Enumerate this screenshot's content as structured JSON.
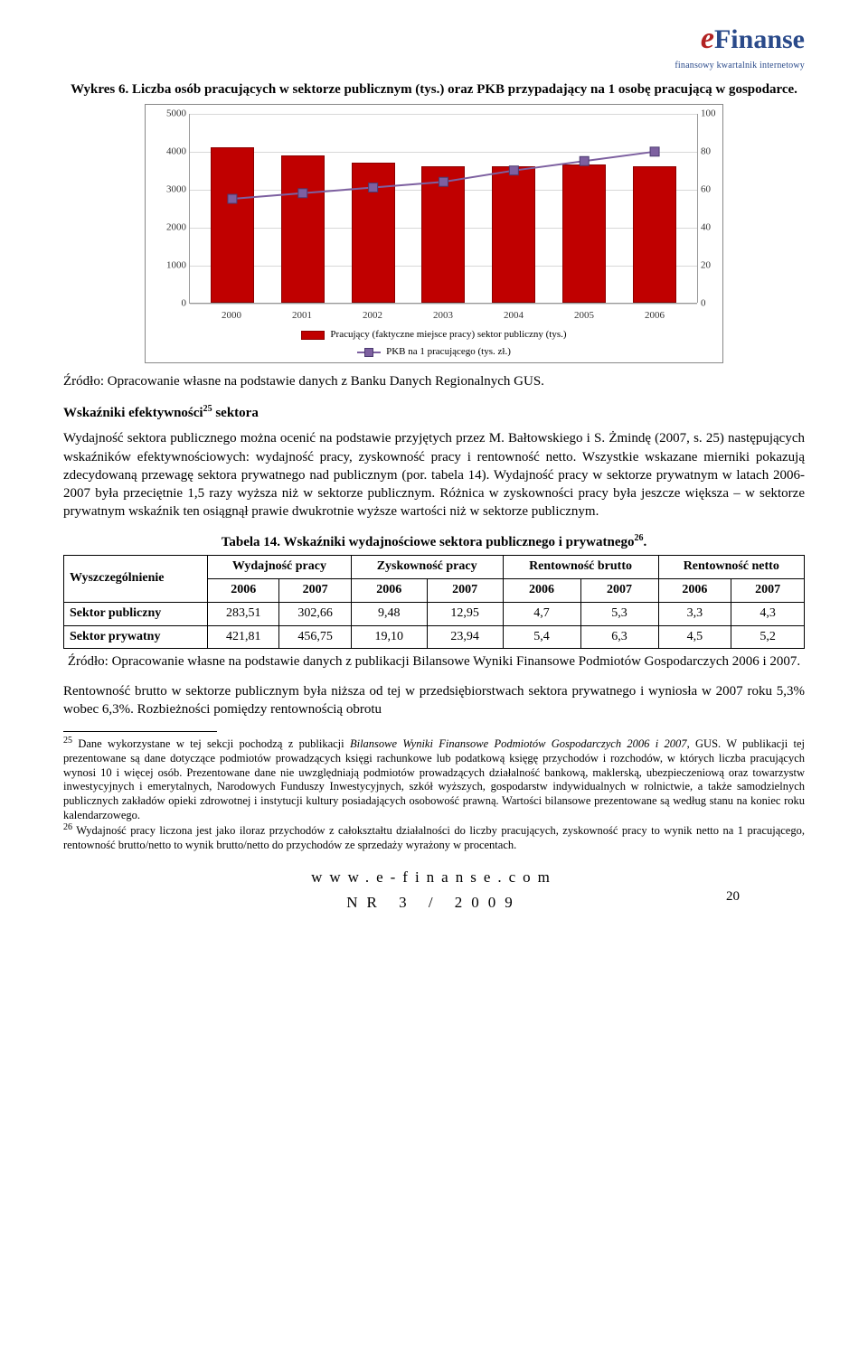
{
  "logo": {
    "brand_e": "e",
    "brand_rest": "Finanse",
    "tagline": "finansowy kwartalnik internetowy"
  },
  "figure": {
    "title": "Wykres 6. Liczba osób pracujących w sektorze publicznym (tys.) oraz PKB przypadający na 1 osobę pracującą w gospodarce.",
    "type": "bar+line",
    "categories": [
      "2000",
      "2001",
      "2002",
      "2003",
      "2004",
      "2005",
      "2006"
    ],
    "bar_values": [
      4100,
      3900,
      3700,
      3600,
      3600,
      3650,
      3600
    ],
    "line_values": [
      55,
      58,
      61,
      64,
      70,
      75,
      80
    ],
    "left_axis": {
      "min": 0,
      "max": 5000,
      "ticks": [
        0,
        1000,
        2000,
        3000,
        4000,
        5000
      ]
    },
    "right_axis": {
      "min": 0,
      "max": 100,
      "ticks": [
        0,
        20,
        40,
        60,
        80,
        100
      ]
    },
    "bar_color": "#c00000",
    "bar_border": "#8a0000",
    "line_color": "#7d60a0",
    "marker_border": "#4b3a70",
    "grid_color": "#d8d8d8",
    "legend": {
      "bar": "Pracujący (faktyczne miejsce pracy) sektor publiczny (tys.)",
      "line": "PKB na 1 pracującego (tys. zł.)"
    }
  },
  "source1": "Źródło: Opracowanie własne na podstawie danych z Banku Danych Regionalnych GUS.",
  "section": {
    "heading_html": "Wskaźniki efektywności<sup>25</sup> sektora",
    "heading": "Wskaźniki efektywności25 sektora"
  },
  "para1": "Wydajność sektora publicznego można ocenić na podstawie przyjętych przez M. Bałtowskiego i S. Żmindę (2007, s. 25) następujących wskaźników efektywnościowych: wydajność pracy, zyskowność pracy i rentowność netto. Wszystkie wskazane mierniki pokazują zdecydowaną przewagę sektora prywatnego nad publicznym (por. tabela 14). Wydajność pracy w sektorze prywatnym w latach 2006-2007 była przeciętnie 1,5 razy wyższa niż w sektorze publicznym. Różnica w zyskowności pracy była jeszcze większa – w sektorze prywatnym wskaźnik ten osiągnął prawie dwukrotnie wyższe wartości niż w sektorze publicznym.",
  "table": {
    "title": "Tabela 14. Wskaźniki wydajnościowe sektora publicznego i prywatnego",
    "title_sup": "26",
    "row_header": "Wyszczególnienie",
    "group_headers": [
      "Wydajność pracy",
      "Zyskowność pracy",
      "Rentowność brutto",
      "Rentowność netto"
    ],
    "year_headers": [
      "2006",
      "2007",
      "2006",
      "2007",
      "2006",
      "2007",
      "2006",
      "2007"
    ],
    "rows": [
      {
        "label": "Sektor publiczny",
        "vals": [
          "283,51",
          "302,66",
          "9,48",
          "12,95",
          "4,7",
          "5,3",
          "3,3",
          "4,3"
        ]
      },
      {
        "label": "Sektor prywatny",
        "vals": [
          "421,81",
          "456,75",
          "19,10",
          "23,94",
          "5,4",
          "6,3",
          "4,5",
          "5,2"
        ]
      }
    ],
    "source": "Źródło: Opracowanie własne na podstawie danych z publikacji Bilansowe Wyniki Finansowe Podmiotów Gospodarczych 2006 i 2007."
  },
  "para2": "Rentowność brutto w sektorze publicznym była niższa od tej w przedsiębiorstwach sektora prywatnego i wyniosła w 2007 roku 5,3% wobec 6,3%. Rozbieżności pomiędzy rentownością obrotu",
  "footnotes": {
    "fn25": "Dane wykorzystane w tej sekcji pochodzą z publikacji Bilansowe Wyniki Finansowe Podmiotów Gospodarczych 2006 i 2007, GUS. W publikacji tej prezentowane są dane dotyczące podmiotów prowadzących księgi rachunkowe lub podatkową księgę przychodów i rozchodów, w których liczba pracujących wynosi 10 i więcej osób. Prezentowane dane nie uwzględniają podmiotów prowadzących działalność bankową, maklerską, ubezpieczeniową oraz towarzystw inwestycyjnych i emerytalnych, Narodowych Funduszy Inwestycyjnych, szkół wyższych, gospodarstw indywidualnych w rolnictwie, a także samodzielnych publicznych zakładów opieki zdrowotnej i instytucji kultury posiadających osobowość prawną. Wartości bilansowe prezentowane są według stanu na koniec roku kalendarzowego.",
    "fn26": "Wydajność pracy liczona jest jako iloraz przychodów z całokształtu działalności do liczby pracujących, zyskowność pracy to wynik netto na 1 pracującego, rentowność brutto/netto to wynik brutto/netto do przychodów ze sprzedaży wyrażony w procentach."
  },
  "footer": {
    "url": "www.e-finanse.com",
    "issue": "NR 3 / 2009",
    "page": "20"
  }
}
